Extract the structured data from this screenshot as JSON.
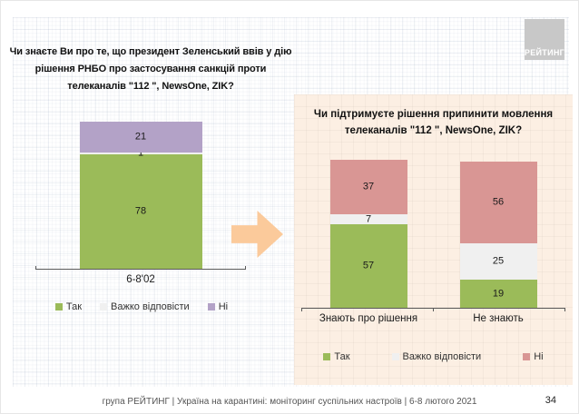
{
  "slide": {
    "logo_text": "РЕЙТИНГ",
    "footer_text": "група РЕЙТИНГ | Україна на карантині: моніторинг суспільних настроїв | 6-8 лютого 2021",
    "page_number": "34"
  },
  "left_question": {
    "lines": [
      "Чи знаєте Ви про те, що президент Зеленський ввів у дію",
      "рішення РНБО про застосування санкцій проти",
      "телеканалів \"112 \", NewsOne, ZIK?"
    ]
  },
  "right_question": {
    "lines": [
      "Чи підтримуєте рішення припинити мовлення",
      "телеканалів \"112 \", NewsOne, ZIK?"
    ]
  },
  "colors": {
    "yes_green": "#9bbb59",
    "hard_to_say_gray": "#f0f0f0",
    "no_purple": "#b3a2c7",
    "no_pink": "#d99694",
    "panel_background": "#fcefe3",
    "arrow_orange": "#fbca9b",
    "logo_gray": "#c8c8c8"
  },
  "chart_data": [
    {
      "type": "bar",
      "subtype": "stacked",
      "title": "Чи знаєте Ви про те, що президент Зеленський ввів у дію рішення РНБО про застосування санкцій проти телеканалів \"112 \", NewsOne, ZIK?",
      "categories": [
        "6-8'02"
      ],
      "series": [
        {
          "name": "Так",
          "color": "#9bbb59",
          "values": [
            78
          ]
        },
        {
          "name": "Важко відповісти",
          "color": "#f0f0f0",
          "values": [
            1
          ]
        },
        {
          "name": "Ні",
          "color": "#b3a2c7",
          "values": [
            21
          ]
        }
      ],
      "ylim": [
        0,
        100
      ],
      "grid": false,
      "legend_position": "bottom",
      "value_labels": true
    },
    {
      "type": "bar",
      "subtype": "stacked",
      "title": "Чи підтримуєте рішення припинити мовлення телеканалів \"112 \", NewsOne, ZIK?",
      "categories": [
        "Знають про рішення",
        "Не знають"
      ],
      "series": [
        {
          "name": "Так",
          "color": "#9bbb59",
          "values": [
            57,
            19
          ]
        },
        {
          "name": "Важко відповісти",
          "color": "#f0f0f0",
          "values": [
            7,
            25
          ]
        },
        {
          "name": "Ні",
          "color": "#d99694",
          "values": [
            37,
            56
          ]
        }
      ],
      "ylim": [
        0,
        100
      ],
      "grid": false,
      "legend_position": "bottom",
      "value_labels": true
    }
  ]
}
